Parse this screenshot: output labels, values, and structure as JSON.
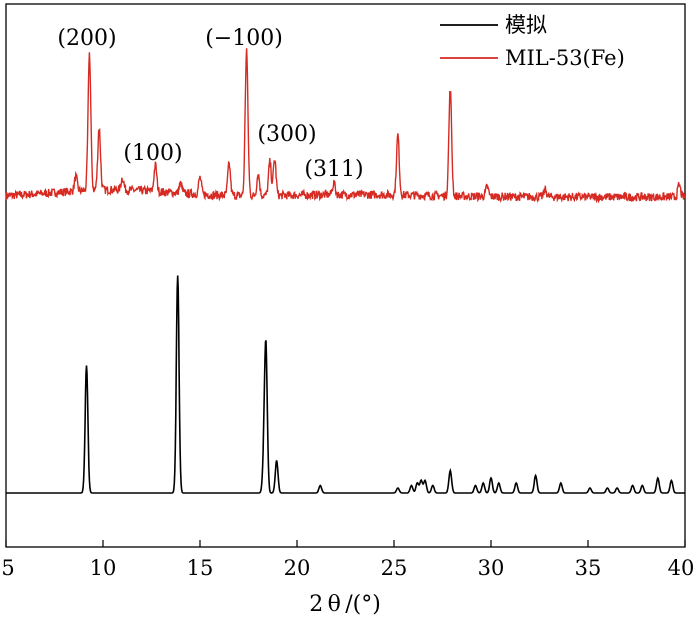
{
  "chart_data": {
    "type": "line",
    "title": "",
    "xlabel": "2 θ /(°)",
    "ylabel": "",
    "xlim": [
      5,
      40
    ],
    "xticks": [
      "5",
      "10",
      "15",
      "20",
      "25",
      "30",
      "35",
      "40"
    ],
    "legend_position": "top-right",
    "grid": false,
    "annotations": [
      {
        "text": "(200)",
        "x": 9.3
      },
      {
        "text": "(100)",
        "x": 12.7
      },
      {
        "text": "(−100)",
        "x": 17.4
      },
      {
        "text": "(300)",
        "x": 18.8
      },
      {
        "text": "(311)",
        "x": 21.5
      }
    ],
    "series": [
      {
        "name": "模拟",
        "color": "#000000",
        "peaks": [
          {
            "x": 9.15,
            "y": 0.51
          },
          {
            "x": 13.85,
            "y": 0.87
          },
          {
            "x": 18.3,
            "y": 0.14
          },
          {
            "x": 18.4,
            "y": 0.56
          },
          {
            "x": 18.95,
            "y": 0.13
          },
          {
            "x": 21.2,
            "y": 0.03
          },
          {
            "x": 25.2,
            "y": 0.02
          },
          {
            "x": 25.9,
            "y": 0.03
          },
          {
            "x": 26.2,
            "y": 0.04
          },
          {
            "x": 26.4,
            "y": 0.05
          },
          {
            "x": 26.6,
            "y": 0.05
          },
          {
            "x": 27.0,
            "y": 0.03
          },
          {
            "x": 27.9,
            "y": 0.09
          },
          {
            "x": 29.2,
            "y": 0.03
          },
          {
            "x": 29.6,
            "y": 0.04
          },
          {
            "x": 30.0,
            "y": 0.06
          },
          {
            "x": 30.4,
            "y": 0.04
          },
          {
            "x": 31.3,
            "y": 0.04
          },
          {
            "x": 32.3,
            "y": 0.07
          },
          {
            "x": 33.6,
            "y": 0.04
          },
          {
            "x": 35.1,
            "y": 0.02
          },
          {
            "x": 36.0,
            "y": 0.02
          },
          {
            "x": 36.5,
            "y": 0.02
          },
          {
            "x": 37.3,
            "y": 0.03
          },
          {
            "x": 37.8,
            "y": 0.03
          },
          {
            "x": 38.6,
            "y": 0.06
          },
          {
            "x": 39.3,
            "y": 0.05
          }
        ]
      },
      {
        "name": "MIL-53(Fe)",
        "color": "#d62a22",
        "peaks": [
          {
            "x": 8.6,
            "y": 0.06
          },
          {
            "x": 9.3,
            "y": 0.57
          },
          {
            "x": 9.8,
            "y": 0.26
          },
          {
            "x": 11.0,
            "y": 0.05
          },
          {
            "x": 12.7,
            "y": 0.11
          },
          {
            "x": 14.0,
            "y": 0.04
          },
          {
            "x": 15.0,
            "y": 0.07
          },
          {
            "x": 16.5,
            "y": 0.13
          },
          {
            "x": 17.4,
            "y": 0.61
          },
          {
            "x": 18.0,
            "y": 0.09
          },
          {
            "x": 18.6,
            "y": 0.14
          },
          {
            "x": 18.85,
            "y": 0.15
          },
          {
            "x": 21.9,
            "y": 0.05
          },
          {
            "x": 25.2,
            "y": 0.25
          },
          {
            "x": 27.9,
            "y": 0.45
          },
          {
            "x": 29.8,
            "y": 0.04
          },
          {
            "x": 32.8,
            "y": 0.03
          },
          {
            "x": 39.7,
            "y": 0.05
          }
        ]
      }
    ]
  }
}
